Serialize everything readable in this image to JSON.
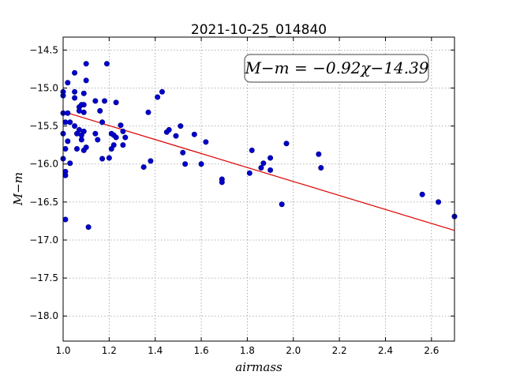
{
  "chart_data": {
    "type": "scatter",
    "title": "2021-10-25_014840",
    "xlabel": "airmass",
    "ylabel": "M−m",
    "xlim": [
      1.0,
      2.7
    ],
    "ylim": [
      -18.33,
      -14.33
    ],
    "y_inverted": true,
    "grid": true,
    "x_ticks": [
      1.0,
      1.2,
      1.4,
      1.6,
      1.8,
      2.0,
      2.2,
      2.4,
      2.6
    ],
    "x_tick_labels": [
      "1.0",
      "1.2",
      "1.4",
      "1.6",
      "1.8",
      "2.0",
      "2.2",
      "2.4",
      "2.6"
    ],
    "y_ticks": [
      -14.5,
      -15.0,
      -15.5,
      -16.0,
      -16.5,
      -17.0,
      -17.5,
      -18.0
    ],
    "y_tick_labels": [
      "−14.5",
      "−15.0",
      "−15.5",
      "−16.0",
      "−16.5",
      "−17.0",
      "−17.5",
      "−18.0"
    ],
    "annotation": "M−m = −0.92χ−14.39",
    "fit": {
      "slope": -0.92,
      "intercept": -14.39,
      "color": "#dd0000"
    },
    "point_color": "#0000cc",
    "points": [
      [
        1.0,
        -15.05
      ],
      [
        1.0,
        -15.1
      ],
      [
        1.0,
        -15.33
      ],
      [
        1.01,
        -15.45
      ],
      [
        1.0,
        -15.6
      ],
      [
        1.01,
        -15.8
      ],
      [
        1.0,
        -15.93
      ],
      [
        1.01,
        -16.1
      ],
      [
        1.01,
        -16.15
      ],
      [
        1.01,
        -16.73
      ],
      [
        1.02,
        -14.93
      ],
      [
        1.02,
        -15.33
      ],
      [
        1.03,
        -15.45
      ],
      [
        1.02,
        -15.7
      ],
      [
        1.03,
        -15.99
      ],
      [
        1.05,
        -14.8
      ],
      [
        1.05,
        -15.05
      ],
      [
        1.05,
        -15.13
      ],
      [
        1.05,
        -15.5
      ],
      [
        1.06,
        -15.6
      ],
      [
        1.06,
        -15.8
      ],
      [
        1.07,
        -15.25
      ],
      [
        1.07,
        -15.3
      ],
      [
        1.07,
        -15.55
      ],
      [
        1.08,
        -15.22
      ],
      [
        1.08,
        -15.62
      ],
      [
        1.08,
        -15.68
      ],
      [
        1.09,
        -15.07
      ],
      [
        1.09,
        -15.22
      ],
      [
        1.09,
        -15.32
      ],
      [
        1.09,
        -15.57
      ],
      [
        1.09,
        -15.82
      ],
      [
        1.1,
        -14.68
      ],
      [
        1.1,
        -14.9
      ],
      [
        1.1,
        -15.78
      ],
      [
        1.11,
        -16.83
      ],
      [
        1.14,
        -15.17
      ],
      [
        1.14,
        -15.6
      ],
      [
        1.15,
        -15.68
      ],
      [
        1.16,
        -15.3
      ],
      [
        1.17,
        -15.45
      ],
      [
        1.17,
        -15.93
      ],
      [
        1.18,
        -15.17
      ],
      [
        1.19,
        -14.68
      ],
      [
        1.2,
        -15.92
      ],
      [
        1.21,
        -15.6
      ],
      [
        1.21,
        -15.8
      ],
      [
        1.22,
        -15.62
      ],
      [
        1.22,
        -15.75
      ],
      [
        1.23,
        -15.65
      ],
      [
        1.23,
        -15.19
      ],
      [
        1.25,
        -15.49
      ],
      [
        1.26,
        -15.57
      ],
      [
        1.26,
        -15.75
      ],
      [
        1.27,
        -15.65
      ],
      [
        1.35,
        -16.04
      ],
      [
        1.37,
        -15.32
      ],
      [
        1.38,
        -15.96
      ],
      [
        1.41,
        -15.12
      ],
      [
        1.43,
        -15.05
      ],
      [
        1.45,
        -15.58
      ],
      [
        1.46,
        -15.55
      ],
      [
        1.49,
        -15.63
      ],
      [
        1.51,
        -15.5
      ],
      [
        1.52,
        -15.85
      ],
      [
        1.53,
        -16.0
      ],
      [
        1.57,
        -15.61
      ],
      [
        1.6,
        -16.0
      ],
      [
        1.62,
        -15.71
      ],
      [
        1.69,
        -16.2
      ],
      [
        1.69,
        -16.24
      ],
      [
        1.81,
        -16.12
      ],
      [
        1.82,
        -15.82
      ],
      [
        1.86,
        -16.05
      ],
      [
        1.87,
        -15.99
      ],
      [
        1.9,
        -15.92
      ],
      [
        1.9,
        -16.08
      ],
      [
        1.95,
        -16.53
      ],
      [
        1.97,
        -15.73
      ],
      [
        2.11,
        -15.87
      ],
      [
        2.12,
        -16.05
      ],
      [
        2.56,
        -16.4
      ],
      [
        2.63,
        -16.5
      ],
      [
        2.7,
        -16.69
      ]
    ]
  }
}
